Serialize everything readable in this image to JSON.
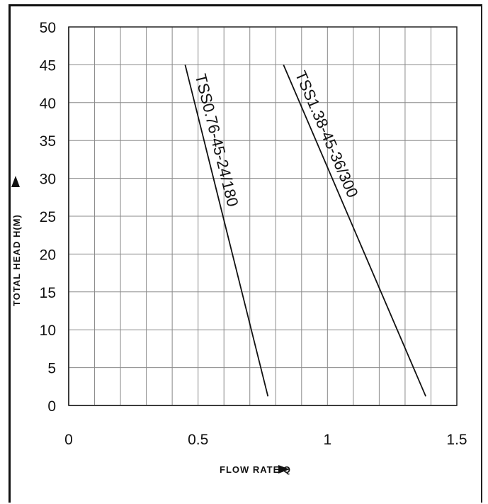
{
  "chart_data": {
    "type": "line",
    "xlabel": "FLOW RATE Q",
    "ylabel": "TOTAL HEAD H(M)",
    "xlim": [
      0,
      1.5
    ],
    "ylim": [
      0,
      50
    ],
    "x_ticks": [
      "0",
      "0.5",
      "1",
      "1.5"
    ],
    "y_ticks": [
      "0",
      "5",
      "10",
      "15",
      "20",
      "25",
      "30",
      "35",
      "40",
      "45",
      "50"
    ],
    "grid": true,
    "series": [
      {
        "name": "TSS0.76-45-24/180",
        "x": [
          0.45,
          0.77
        ],
        "y": [
          45,
          1.2
        ]
      },
      {
        "name": "TSS1.38-45-36/300",
        "x": [
          0.83,
          1.38
        ],
        "y": [
          45,
          1.2
        ]
      }
    ]
  }
}
